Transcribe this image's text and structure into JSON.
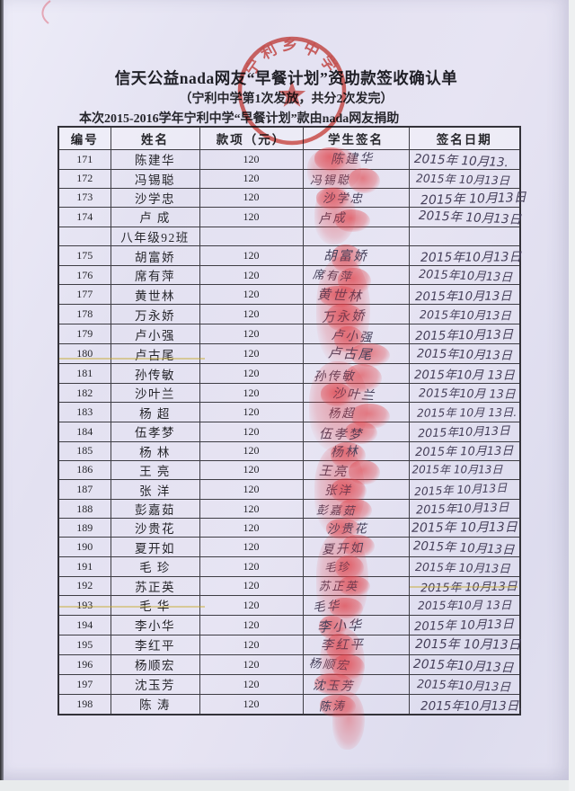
{
  "document": {
    "title": "信天公益nada网友“早餐计划”资助款签收确认单",
    "subtitle": "（宁利中学第1次发放，共分2次发完）",
    "note": "本次2015-2016学年宁利中学“早餐计划”款由nada网友捐助",
    "stamp_text": "宁利乡中学"
  },
  "table": {
    "headers": [
      "编号",
      "姓名",
      "款项（元）",
      "学生签名",
      "签名日期"
    ],
    "rows": [
      {
        "no": "171",
        "name": "陈建华",
        "amount": "120",
        "signature": "陈建华",
        "date": "2015年 10月13."
      },
      {
        "no": "172",
        "name": "冯锡聪",
        "amount": "120",
        "signature": "冯锡聪",
        "date": "2015年 10月13日"
      },
      {
        "no": "173",
        "name": "沙学忠",
        "amount": "120",
        "signature": "沙学忠",
        "date": "2015年 10月13日"
      },
      {
        "no": "174",
        "name": "卢 成",
        "amount": "120",
        "signature": "卢成",
        "date": "2015年 10月13日"
      },
      {
        "no": "",
        "name": "八年级92班",
        "amount": "",
        "signature": "",
        "date": ""
      },
      {
        "no": "175",
        "name": "胡富娇",
        "amount": "120",
        "signature": "胡富娇",
        "date": "2015年10月13日"
      },
      {
        "no": "176",
        "name": "席有萍",
        "amount": "120",
        "signature": "席有萍",
        "date": "2015年10月13日"
      },
      {
        "no": "177",
        "name": "黄世林",
        "amount": "120",
        "signature": "黄世林",
        "date": "2015年10月13日"
      },
      {
        "no": "178",
        "name": "万永娇",
        "amount": "120",
        "signature": "万永娇",
        "date": "2015年10月13日"
      },
      {
        "no": "179",
        "name": "卢小强",
        "amount": "120",
        "signature": "卢小强",
        "date": "2015年10月13日"
      },
      {
        "no": "180",
        "name": "卢古尾",
        "amount": "120",
        "signature": "卢古尾",
        "date": "2015年10月13日"
      },
      {
        "no": "181",
        "name": "孙传敏",
        "amount": "120",
        "signature": "孙传敏",
        "date": "2015年10月 13日"
      },
      {
        "no": "182",
        "name": "沙叶兰",
        "amount": "120",
        "signature": "沙叶兰",
        "date": "2015年10月 13日"
      },
      {
        "no": "183",
        "name": "杨 超",
        "amount": "120",
        "signature": "杨超",
        "date": "2015年 10月 13日."
      },
      {
        "no": "184",
        "name": "伍孝梦",
        "amount": "120",
        "signature": "伍孝梦",
        "date": "2015年10月13日"
      },
      {
        "no": "185",
        "name": "杨 林",
        "amount": "120",
        "signature": "杨林",
        "date": "2015年 10月13日"
      },
      {
        "no": "186",
        "name": "王 亮",
        "amount": "120",
        "signature": "王亮",
        "date": "2015年 10月13日"
      },
      {
        "no": "187",
        "name": "张 洋",
        "amount": "120",
        "signature": "张洋",
        "date": "2015年 10月13日"
      },
      {
        "no": "188",
        "name": "彭嘉茹",
        "amount": "120",
        "signature": "彭嘉茹",
        "date": "2015年10月13日"
      },
      {
        "no": "189",
        "name": "沙贵花",
        "amount": "120",
        "signature": "沙贵花",
        "date": "2015年 10月13日"
      },
      {
        "no": "190",
        "name": "夏开如",
        "amount": "120",
        "signature": "夏开如",
        "date": "2015年 10月13日"
      },
      {
        "no": "191",
        "name": "毛 珍",
        "amount": "120",
        "signature": "毛珍",
        "date": "2015年 10月13日"
      },
      {
        "no": "192",
        "name": "苏正英",
        "amount": "120",
        "signature": "苏正英",
        "date": "2015年 10月13日"
      },
      {
        "no": "193",
        "name": "毛 华",
        "amount": "120",
        "signature": "毛华",
        "date": "2015年10月 13日"
      },
      {
        "no": "194",
        "name": "李小华",
        "amount": "120",
        "signature": "李小华",
        "date": "2015年 10月13日"
      },
      {
        "no": "195",
        "name": "李红平",
        "amount": "120",
        "signature": "李红平",
        "date": "2015年 10月13日"
      },
      {
        "no": "196",
        "name": "杨顺宏",
        "amount": "120",
        "signature": "杨顺宏",
        "date": "2015年10月13日"
      },
      {
        "no": "197",
        "name": "沈玉芳",
        "amount": "120",
        "signature": "沈玉芳",
        "date": "2015年10月13日"
      },
      {
        "no": "198",
        "name": "陈 涛",
        "amount": "120",
        "signature": "陈涛",
        "date": "2015年10月13日."
      }
    ]
  },
  "colors": {
    "stamp_red": "#d6463e",
    "fingerprint_red": "#e03a40",
    "paper": "#e6e4f3",
    "ink": "#26262b",
    "handwriting": "#46405a"
  }
}
